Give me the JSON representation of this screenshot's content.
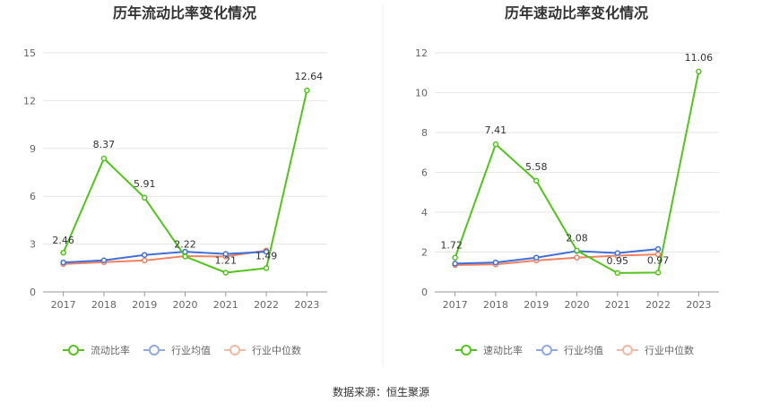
{
  "source": "数据来源：恒生聚源",
  "chart_data": [
    {
      "type": "line",
      "title": "历年流动比率变化情况",
      "categories": [
        "2017",
        "2018",
        "2019",
        "2020",
        "2021",
        "2022",
        "2023"
      ],
      "ylim": [
        0,
        15
      ],
      "yticks": [
        "0",
        "3",
        "6",
        "9",
        "12",
        "15"
      ],
      "grid": true,
      "legend_position": "bottom",
      "series": [
        {
          "name": "流动比率",
          "color": "#52c41a",
          "values": [
            2.46,
            8.37,
            5.91,
            2.22,
            1.21,
            1.49,
            12.64
          ],
          "labels": [
            "2.46",
            "8.37",
            "5.91",
            "2.22",
            "1.21",
            "1.49",
            "12.64"
          ]
        },
        {
          "name": "行业均值",
          "color": "#3f6fd8",
          "values": [
            1.85,
            1.98,
            2.32,
            2.52,
            2.38,
            2.52,
            null
          ]
        },
        {
          "name": "行业中位数",
          "color": "#f0825f",
          "values": [
            1.75,
            1.87,
            1.97,
            2.25,
            2.22,
            2.6,
            null
          ]
        }
      ]
    },
    {
      "type": "line",
      "title": "历年速动比率变化情况",
      "categories": [
        "2017",
        "2018",
        "2019",
        "2020",
        "2021",
        "2022",
        "2023"
      ],
      "ylim": [
        0,
        12
      ],
      "yticks": [
        "0",
        "2",
        "4",
        "6",
        "8",
        "10",
        "12"
      ],
      "grid": true,
      "legend_position": "bottom",
      "series": [
        {
          "name": "速动比率",
          "color": "#52c41a",
          "values": [
            1.72,
            7.41,
            5.58,
            2.08,
            0.95,
            0.97,
            11.06
          ],
          "labels": [
            "1.72",
            "7.41",
            "5.58",
            "2.08",
            "0.95",
            "0.97",
            "11.06"
          ]
        },
        {
          "name": "行业均值",
          "color": "#3f6fd8",
          "values": [
            1.42,
            1.48,
            1.72,
            2.05,
            1.95,
            2.15,
            null
          ]
        },
        {
          "name": "行业中位数",
          "color": "#f0825f",
          "values": [
            1.35,
            1.38,
            1.58,
            1.72,
            1.82,
            1.88,
            null
          ]
        }
      ]
    }
  ]
}
